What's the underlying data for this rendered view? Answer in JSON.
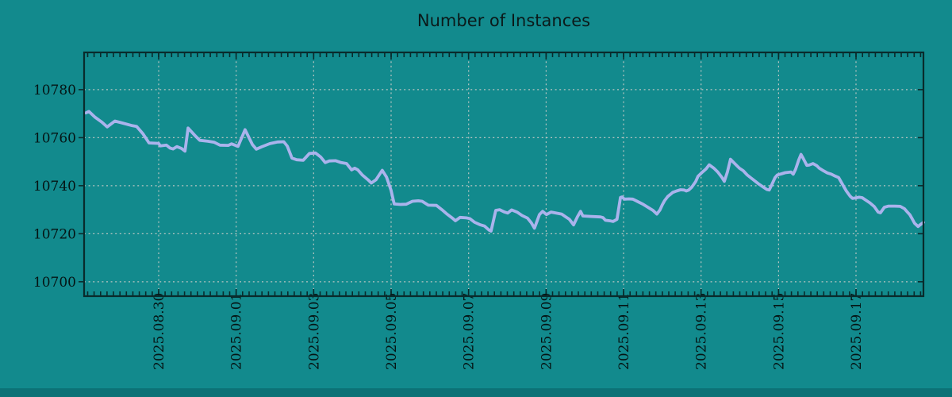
{
  "title": "Number of Instances",
  "colors": {
    "background": "#128a8d",
    "bottom_strip": "#0c7276",
    "line": "#aab3ec",
    "grid": "#c7cac6",
    "frame": "#092b2c",
    "title_text": "#0b1a1a",
    "tick_text": "#051414"
  },
  "chart_data": {
    "type": "line",
    "title": "Number of Instances",
    "series_name": "instances",
    "xlabel": "",
    "ylabel": "",
    "x_unit": "days since 2025-08-28 00:00",
    "x_domain": [
      0.075,
      21.74
    ],
    "y_domain": [
      10694,
      10795.5
    ],
    "y_ticks": [
      10700,
      10720,
      10740,
      10760,
      10780
    ],
    "x_ticks": [
      {
        "day": 2,
        "label": "2025.08.30"
      },
      {
        "day": 4,
        "label": "2025.09.01"
      },
      {
        "day": 6,
        "label": "2025.09.03"
      },
      {
        "day": 8,
        "label": "2025.09.05"
      },
      {
        "day": 10,
        "label": "2025.09.07"
      },
      {
        "day": 12,
        "label": "2025.09.09"
      },
      {
        "day": 14,
        "label": "2025.09.11"
      },
      {
        "day": 16,
        "label": "2025.09.13"
      },
      {
        "day": 18,
        "label": "2025.09.15"
      },
      {
        "day": 20,
        "label": "2025.09.17"
      }
    ],
    "x_minor_step_days": 0.166667,
    "grid": "dashed",
    "legend": "none",
    "line_color": "#aab3ec",
    "points": [
      [
        0.12,
        10770.3
      ],
      [
        0.2,
        10770.9
      ],
      [
        0.36,
        10768.5
      ],
      [
        0.53,
        10766.5
      ],
      [
        0.67,
        10764.5
      ],
      [
        0.87,
        10766.9
      ],
      [
        1.04,
        10766.2
      ],
      [
        1.32,
        10765.0
      ],
      [
        1.43,
        10764.7
      ],
      [
        1.59,
        10761.7
      ],
      [
        1.75,
        10757.8
      ],
      [
        2.0,
        10757.6
      ],
      [
        2.04,
        10756.6
      ],
      [
        2.2,
        10756.9
      ],
      [
        2.29,
        10755.7
      ],
      [
        2.37,
        10755.3
      ],
      [
        2.47,
        10756.3
      ],
      [
        2.59,
        10755.5
      ],
      [
        2.68,
        10754.4
      ],
      [
        2.76,
        10764.0
      ],
      [
        2.96,
        10760.5
      ],
      [
        3.06,
        10758.9
      ],
      [
        3.27,
        10758.5
      ],
      [
        3.43,
        10758.1
      ],
      [
        3.58,
        10756.9
      ],
      [
        3.8,
        10756.8
      ],
      [
        3.88,
        10757.4
      ],
      [
        4.05,
        10756.4
      ],
      [
        4.23,
        10763.3
      ],
      [
        4.42,
        10757.1
      ],
      [
        4.52,
        10755.2
      ],
      [
        4.66,
        10756.2
      ],
      [
        4.87,
        10757.5
      ],
      [
        5.07,
        10758.2
      ],
      [
        5.23,
        10758.3
      ],
      [
        5.32,
        10756.5
      ],
      [
        5.44,
        10751.5
      ],
      [
        5.56,
        10750.8
      ],
      [
        5.73,
        10750.6
      ],
      [
        5.89,
        10753.4
      ],
      [
        6.05,
        10753.6
      ],
      [
        6.18,
        10752.0
      ],
      [
        6.3,
        10749.6
      ],
      [
        6.4,
        10750.3
      ],
      [
        6.57,
        10750.4
      ],
      [
        6.71,
        10749.6
      ],
      [
        6.85,
        10749.2
      ],
      [
        6.98,
        10746.6
      ],
      [
        7.06,
        10747.3
      ],
      [
        7.14,
        10746.6
      ],
      [
        7.26,
        10744.4
      ],
      [
        7.4,
        10742.5
      ],
      [
        7.49,
        10741.1
      ],
      [
        7.61,
        10742.5
      ],
      [
        7.77,
        10746.4
      ],
      [
        7.88,
        10743.6
      ],
      [
        8.0,
        10738.0
      ],
      [
        8.08,
        10732.4
      ],
      [
        8.24,
        10732.2
      ],
      [
        8.39,
        10732.3
      ],
      [
        8.55,
        10733.5
      ],
      [
        8.7,
        10733.7
      ],
      [
        8.8,
        10733.5
      ],
      [
        8.96,
        10731.9
      ],
      [
        9.17,
        10731.8
      ],
      [
        9.31,
        10730.0
      ],
      [
        9.45,
        10728.1
      ],
      [
        9.58,
        10726.5
      ],
      [
        9.66,
        10725.4
      ],
      [
        9.78,
        10726.8
      ],
      [
        9.94,
        10726.6
      ],
      [
        10.03,
        10726.3
      ],
      [
        10.15,
        10724.8
      ],
      [
        10.29,
        10723.8
      ],
      [
        10.41,
        10723.2
      ],
      [
        10.52,
        10721.6
      ],
      [
        10.58,
        10721.1
      ],
      [
        10.7,
        10729.7
      ],
      [
        10.8,
        10730.0
      ],
      [
        10.93,
        10729.0
      ],
      [
        11.01,
        10728.6
      ],
      [
        11.11,
        10729.9
      ],
      [
        11.25,
        10729.0
      ],
      [
        11.38,
        10727.6
      ],
      [
        11.52,
        10726.5
      ],
      [
        11.62,
        10724.5
      ],
      [
        11.7,
        10722.3
      ],
      [
        11.83,
        10728.0
      ],
      [
        11.91,
        10729.3
      ],
      [
        12.01,
        10728.0
      ],
      [
        12.13,
        10729.0
      ],
      [
        12.4,
        10728.2
      ],
      [
        12.5,
        10727.1
      ],
      [
        12.6,
        10726.0
      ],
      [
        12.71,
        10723.7
      ],
      [
        12.81,
        10727.1
      ],
      [
        12.89,
        10729.3
      ],
      [
        12.95,
        10727.4
      ],
      [
        13.16,
        10727.2
      ],
      [
        13.4,
        10727.0
      ],
      [
        13.47,
        10726.7
      ],
      [
        13.53,
        10725.6
      ],
      [
        13.67,
        10725.3
      ],
      [
        13.73,
        10725.1
      ],
      [
        13.83,
        10726.0
      ],
      [
        13.92,
        10735.1
      ],
      [
        13.96,
        10735.3
      ],
      [
        14.02,
        10734.4
      ],
      [
        14.14,
        10734.5
      ],
      [
        14.24,
        10734.4
      ],
      [
        14.35,
        10733.5
      ],
      [
        14.49,
        10732.4
      ],
      [
        14.63,
        10731.0
      ],
      [
        14.76,
        10729.7
      ],
      [
        14.86,
        10728.2
      ],
      [
        14.94,
        10729.9
      ],
      [
        15.0,
        10732.1
      ],
      [
        15.06,
        10733.8
      ],
      [
        15.14,
        10735.5
      ],
      [
        15.21,
        10736.4
      ],
      [
        15.27,
        10737.2
      ],
      [
        15.37,
        10737.8
      ],
      [
        15.47,
        10738.3
      ],
      [
        15.56,
        10738.2
      ],
      [
        15.62,
        10737.8
      ],
      [
        15.68,
        10738.2
      ],
      [
        15.76,
        10739.4
      ],
      [
        15.86,
        10741.7
      ],
      [
        15.92,
        10743.9
      ],
      [
        16.03,
        10745.6
      ],
      [
        16.13,
        10747.0
      ],
      [
        16.21,
        10748.7
      ],
      [
        16.33,
        10747.3
      ],
      [
        16.43,
        10745.7
      ],
      [
        16.54,
        10743.4
      ],
      [
        16.6,
        10741.8
      ],
      [
        16.68,
        10745.7
      ],
      [
        16.76,
        10751.0
      ],
      [
        16.88,
        10749.0
      ],
      [
        16.99,
        10747.3
      ],
      [
        17.09,
        10746.2
      ],
      [
        17.19,
        10744.5
      ],
      [
        17.29,
        10743.2
      ],
      [
        17.4,
        10741.8
      ],
      [
        17.5,
        10740.6
      ],
      [
        17.6,
        10739.5
      ],
      [
        17.7,
        10738.4
      ],
      [
        17.76,
        10738.2
      ],
      [
        17.83,
        10740.6
      ],
      [
        17.91,
        10743.4
      ],
      [
        17.97,
        10744.5
      ],
      [
        18.07,
        10744.9
      ],
      [
        18.17,
        10745.4
      ],
      [
        18.32,
        10745.7
      ],
      [
        18.38,
        10744.8
      ],
      [
        18.44,
        10746.8
      ],
      [
        18.52,
        10750.7
      ],
      [
        18.58,
        10753.0
      ],
      [
        18.64,
        10751.3
      ],
      [
        18.73,
        10748.5
      ],
      [
        18.79,
        10748.6
      ],
      [
        18.89,
        10749.2
      ],
      [
        18.99,
        10748.3
      ],
      [
        19.05,
        10747.3
      ],
      [
        19.16,
        10746.2
      ],
      [
        19.26,
        10745.3
      ],
      [
        19.36,
        10744.8
      ],
      [
        19.46,
        10744.0
      ],
      [
        19.55,
        10743.4
      ],
      [
        19.65,
        10740.6
      ],
      [
        19.75,
        10737.8
      ],
      [
        19.85,
        10735.6
      ],
      [
        19.91,
        10734.7
      ],
      [
        20.02,
        10735.0
      ],
      [
        20.08,
        10735.2
      ],
      [
        20.16,
        10735.0
      ],
      [
        20.26,
        10733.9
      ],
      [
        20.36,
        10732.8
      ],
      [
        20.47,
        10731.3
      ],
      [
        20.57,
        10729.0
      ],
      [
        20.63,
        10728.7
      ],
      [
        20.73,
        10731.0
      ],
      [
        20.84,
        10731.5
      ],
      [
        21.0,
        10731.5
      ],
      [
        21.14,
        10731.4
      ],
      [
        21.25,
        10730.4
      ],
      [
        21.31,
        10729.3
      ],
      [
        21.39,
        10727.9
      ],
      [
        21.45,
        10726.2
      ],
      [
        21.51,
        10724.4
      ],
      [
        21.6,
        10723.0
      ],
      [
        21.66,
        10723.8
      ],
      [
        21.74,
        10724.7
      ]
    ]
  }
}
